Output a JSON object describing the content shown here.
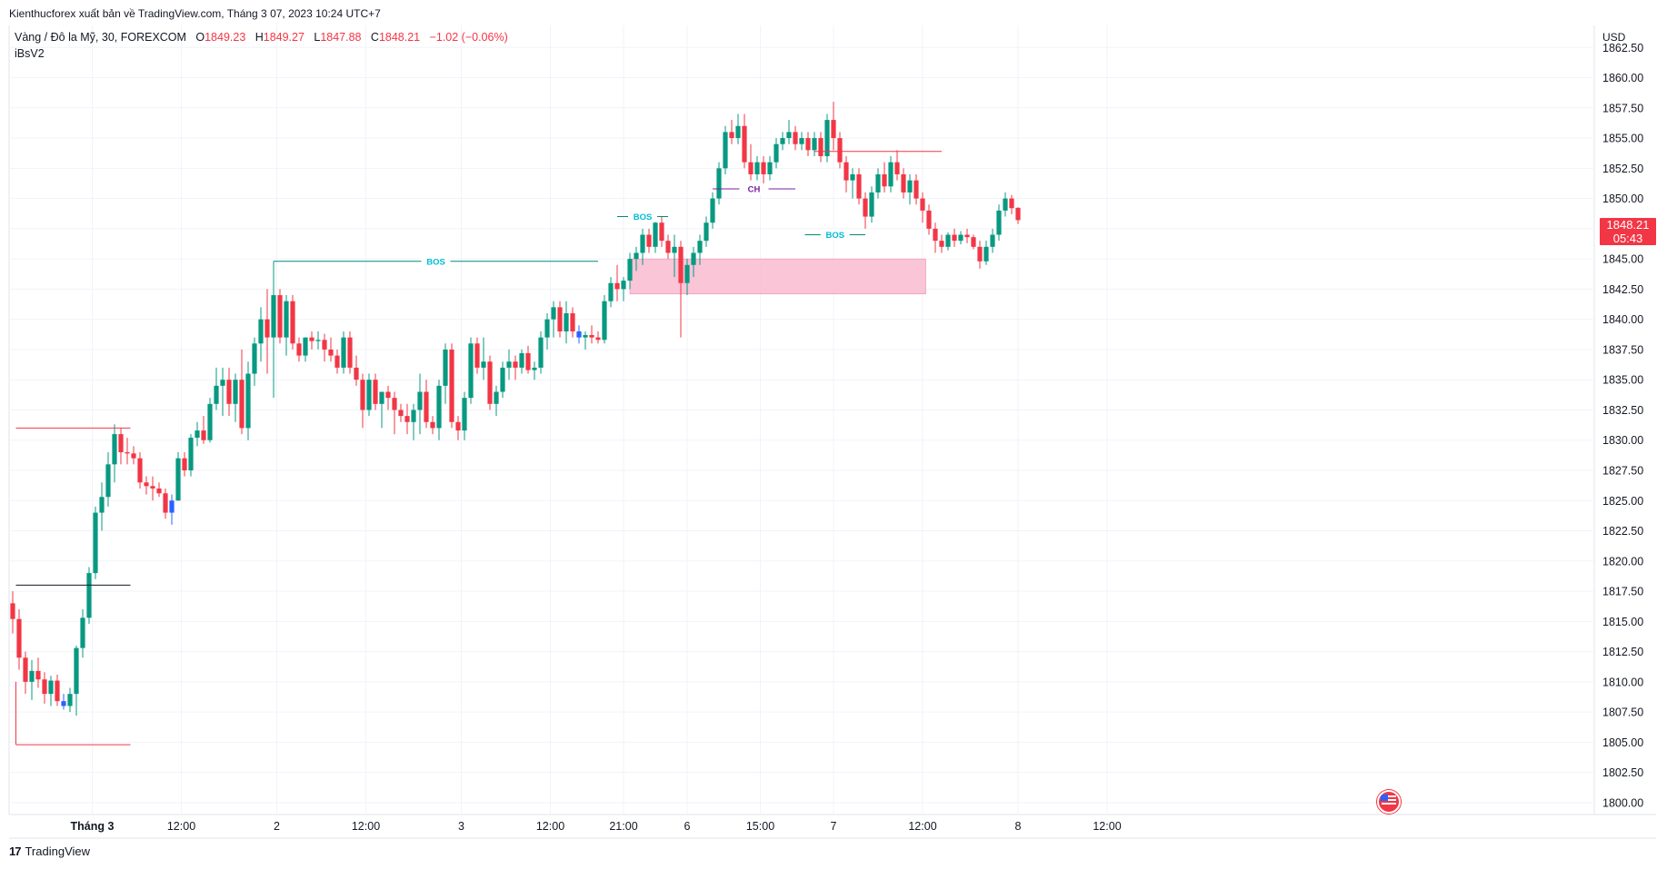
{
  "header": {
    "publisher_line": "Kienthucforex xuất bản về TradingView.com, Tháng 3 07, 2023 10:24 UTC+7"
  },
  "legend": {
    "symbol": "Vàng / Đô la Mỹ, 30, FOREXCOM",
    "open_label": "O",
    "open": "1849.23",
    "high_label": "H",
    "high": "1849.27",
    "low_label": "L",
    "low": "1847.88",
    "close_label": "C",
    "close": "1848.21",
    "change": "−1.02 (−0.06%)",
    "indicator": "iBsV2"
  },
  "price_axis": {
    "currency": "USD",
    "current_price": "1848.21",
    "countdown": "05:43"
  },
  "footer": {
    "brand": "TradingView",
    "brand_mark": "17"
  },
  "colors": {
    "up": "#089981",
    "down": "#f23645",
    "down_blue": "#2962ff",
    "bos": "#00bcd4",
    "choch": "#7b1fa2",
    "swing_high": "#f23645",
    "swing_low": "#f23645",
    "equilibrium": "#131722",
    "order_block": "#f8bbd0",
    "grid": "#f0f3fa"
  },
  "chart_data": {
    "type": "candlestick",
    "symbol": "XAUUSD",
    "timeframe": "30",
    "y_axis": {
      "ylim": [
        1799.8,
        1863.0
      ],
      "ticks": [
        "1800.00",
        "1802.50",
        "1805.00",
        "1807.50",
        "1810.00",
        "1812.50",
        "1815.00",
        "1817.50",
        "1820.00",
        "1822.50",
        "1825.00",
        "1827.50",
        "1830.00",
        "1832.50",
        "1835.00",
        "1837.50",
        "1840.00",
        "1842.50",
        "1845.00",
        "1847.50",
        "1850.00",
        "1852.50",
        "1855.00",
        "1857.50",
        "1860.00",
        "1862.50"
      ]
    },
    "x_axis": {
      "ticks": [
        {
          "label": "Tháng 3",
          "bold": true,
          "bar": 12.5
        },
        {
          "label": "12:00",
          "bold": false,
          "bar": 26.5
        },
        {
          "label": "2",
          "bold": false,
          "bar": 41.5
        },
        {
          "label": "12:00",
          "bold": false,
          "bar": 55.5
        },
        {
          "label": "3",
          "bold": false,
          "bar": 70.5
        },
        {
          "label": "12:00",
          "bold": false,
          "bar": 84.5
        },
        {
          "label": "21:00",
          "bold": false,
          "bar": 96
        },
        {
          "label": "6",
          "bold": false,
          "bar": 106
        },
        {
          "label": "15:00",
          "bold": false,
          "bar": 117.5
        },
        {
          "label": "7",
          "bold": false,
          "bar": 129
        },
        {
          "label": "12:00",
          "bold": false,
          "bar": 143
        },
        {
          "label": "8",
          "bold": false,
          "bar": 158
        },
        {
          "label": "12:00",
          "bold": false,
          "bar": 172
        }
      ]
    },
    "candles": [
      [
        1816.5,
        1817.5,
        1814.0,
        1815.2
      ],
      [
        1815.2,
        1816.0,
        1811.0,
        1812.0
      ],
      [
        1812.0,
        1812.5,
        1809.0,
        1810.0
      ],
      [
        1810.0,
        1811.8,
        1808.5,
        1810.9
      ],
      [
        1810.9,
        1812.0,
        1809.5,
        1810.2
      ],
      [
        1810.2,
        1810.8,
        1808.2,
        1809.0
      ],
      [
        1809.0,
        1810.5,
        1808.0,
        1810.1
      ],
      [
        1810.1,
        1810.6,
        1808.0,
        1808.4
      ],
      [
        1808.4,
        1809.0,
        1807.7,
        1808.0
      ],
      [
        1808.0,
        1809.5,
        1807.5,
        1809.0
      ],
      [
        1809.0,
        1813.0,
        1807.2,
        1812.8
      ],
      [
        1812.8,
        1816.0,
        1812.0,
        1815.3
      ],
      [
        1815.3,
        1819.5,
        1814.8,
        1819.0
      ],
      [
        1819.0,
        1824.5,
        1818.5,
        1824.0
      ],
      [
        1824.0,
        1826.5,
        1822.5,
        1825.3
      ],
      [
        1825.3,
        1829.0,
        1824.5,
        1828.0
      ],
      [
        1828.0,
        1831.3,
        1826.5,
        1830.5
      ],
      [
        1830.5,
        1831.0,
        1828.0,
        1829.0
      ],
      [
        1829.0,
        1830.2,
        1828.0,
        1828.9
      ],
      [
        1828.9,
        1829.5,
        1828.0,
        1828.5
      ],
      [
        1828.5,
        1829.0,
        1826.0,
        1826.5
      ],
      [
        1826.5,
        1827.0,
        1825.5,
        1826.2
      ],
      [
        1826.2,
        1827.0,
        1825.0,
        1826.0
      ],
      [
        1826.0,
        1826.5,
        1825.3,
        1825.6
      ],
      [
        1825.6,
        1826.0,
        1823.5,
        1824.0
      ],
      [
        1824.0,
        1825.5,
        1823.0,
        1825.0
      ],
      [
        1825.0,
        1829.0,
        1825.0,
        1828.5
      ],
      [
        1828.5,
        1829.0,
        1827.0,
        1827.5
      ],
      [
        1827.5,
        1830.5,
        1827.0,
        1830.2
      ],
      [
        1830.2,
        1831.5,
        1829.5,
        1830.8
      ],
      [
        1830.8,
        1832.0,
        1829.7,
        1830.0
      ],
      [
        1830.0,
        1833.5,
        1829.8,
        1833.0
      ],
      [
        1833.0,
        1836.0,
        1832.5,
        1834.5
      ],
      [
        1834.5,
        1836.0,
        1832.0,
        1835.0
      ],
      [
        1835.0,
        1836.0,
        1832.0,
        1833.0
      ],
      [
        1833.0,
        1835.5,
        1831.5,
        1835.0
      ],
      [
        1835.0,
        1837.5,
        1830.5,
        1831.0
      ],
      [
        1831.0,
        1836.5,
        1830.0,
        1835.5
      ],
      [
        1835.5,
        1838.5,
        1834.5,
        1838.0
      ],
      [
        1838.0,
        1841.0,
        1836.5,
        1840.0
      ],
      [
        1840.0,
        1842.5,
        1835.5,
        1838.5
      ],
      [
        1838.5,
        1844.8,
        1833.5,
        1842.0
      ],
      [
        1842.0,
        1842.5,
        1838.0,
        1838.5
      ],
      [
        1838.5,
        1842.0,
        1837.0,
        1841.5
      ],
      [
        1841.5,
        1842.0,
        1837.5,
        1838.0
      ],
      [
        1838.0,
        1838.5,
        1836.5,
        1837.0
      ],
      [
        1837.0,
        1838.5,
        1836.5,
        1838.5
      ],
      [
        1838.5,
        1839.0,
        1837.5,
        1838.2
      ],
      [
        1838.2,
        1839.0,
        1837.5,
        1838.3
      ],
      [
        1838.3,
        1838.8,
        1836.5,
        1837.5
      ],
      [
        1837.5,
        1838.5,
        1836.5,
        1837.0
      ],
      [
        1837.0,
        1837.5,
        1835.5,
        1836.0
      ],
      [
        1836.0,
        1839.0,
        1835.5,
        1838.5
      ],
      [
        1838.5,
        1839.0,
        1835.5,
        1836.0
      ],
      [
        1836.0,
        1837.0,
        1834.5,
        1835.0
      ],
      [
        1835.0,
        1835.5,
        1831.0,
        1832.5
      ],
      [
        1832.5,
        1835.5,
        1832.0,
        1835.0
      ],
      [
        1835.0,
        1835.5,
        1832.5,
        1833.0
      ],
      [
        1833.0,
        1834.0,
        1831.0,
        1834.0
      ],
      [
        1834.0,
        1834.5,
        1832.5,
        1833.5
      ],
      [
        1833.5,
        1834.0,
        1830.5,
        1832.5
      ],
      [
        1832.5,
        1833.0,
        1831.5,
        1832.0
      ],
      [
        1832.0,
        1833.0,
        1830.5,
        1831.5
      ],
      [
        1831.5,
        1833.0,
        1830.0,
        1832.5
      ],
      [
        1832.5,
        1835.5,
        1830.5,
        1834.0
      ],
      [
        1834.0,
        1835.0,
        1831.0,
        1831.5
      ],
      [
        1831.5,
        1832.0,
        1830.5,
        1831.0
      ],
      [
        1831.0,
        1835.0,
        1830.0,
        1834.5
      ],
      [
        1834.5,
        1838.0,
        1833.0,
        1837.5
      ],
      [
        1837.5,
        1838.0,
        1831.0,
        1831.5
      ],
      [
        1831.5,
        1832.0,
        1830.0,
        1830.8
      ],
      [
        1830.8,
        1834.0,
        1830.0,
        1833.5
      ],
      [
        1833.5,
        1838.5,
        1833.0,
        1838.0
      ],
      [
        1838.0,
        1838.5,
        1835.5,
        1836.0
      ],
      [
        1836.0,
        1838.5,
        1835.0,
        1836.5
      ],
      [
        1836.5,
        1837.0,
        1832.5,
        1833.0
      ],
      [
        1833.0,
        1834.5,
        1832.0,
        1834.0
      ],
      [
        1834.0,
        1836.5,
        1833.5,
        1836.0
      ],
      [
        1836.0,
        1837.5,
        1835.0,
        1836.5
      ],
      [
        1836.5,
        1837.0,
        1835.0,
        1836.0
      ],
      [
        1836.0,
        1837.5,
        1835.5,
        1837.2
      ],
      [
        1837.2,
        1837.8,
        1835.5,
        1835.8
      ],
      [
        1835.8,
        1836.5,
        1835.0,
        1836.0
      ],
      [
        1836.0,
        1839.0,
        1835.5,
        1838.5
      ],
      [
        1838.5,
        1840.5,
        1837.5,
        1840.0
      ],
      [
        1840.0,
        1841.5,
        1838.5,
        1841.0
      ],
      [
        1841.0,
        1841.5,
        1838.5,
        1839.0
      ],
      [
        1839.0,
        1841.5,
        1838.0,
        1840.5
      ],
      [
        1840.5,
        1841.0,
        1838.5,
        1839.0
      ],
      [
        1839.0,
        1839.5,
        1838.0,
        1838.5
      ],
      [
        1838.5,
        1839.0,
        1837.5,
        1838.7
      ],
      [
        1838.7,
        1839.5,
        1838.0,
        1838.5
      ],
      [
        1838.5,
        1839.0,
        1838.0,
        1838.3
      ],
      [
        1838.3,
        1842.0,
        1838.0,
        1841.5
      ],
      [
        1841.5,
        1843.5,
        1841.0,
        1843.0
      ],
      [
        1843.0,
        1844.5,
        1841.5,
        1842.5
      ],
      [
        1842.5,
        1843.5,
        1841.5,
        1843.2
      ],
      [
        1843.2,
        1845.5,
        1842.5,
        1845.0
      ],
      [
        1845.0,
        1846.0,
        1844.0,
        1845.5
      ],
      [
        1845.5,
        1847.5,
        1844.5,
        1847.0
      ],
      [
        1847.0,
        1847.5,
        1845.5,
        1846.0
      ],
      [
        1846.0,
        1848.5,
        1845.5,
        1848.0
      ],
      [
        1848.0,
        1848.5,
        1846.0,
        1846.5
      ],
      [
        1846.5,
        1847.0,
        1845.0,
        1845.5
      ],
      [
        1845.5,
        1847.0,
        1843.5,
        1846.0
      ],
      [
        1846.0,
        1846.5,
        1838.5,
        1843.0
      ],
      [
        1843.0,
        1845.0,
        1842.0,
        1844.5
      ],
      [
        1844.5,
        1846.0,
        1843.5,
        1845.5
      ],
      [
        1845.5,
        1847.0,
        1844.5,
        1846.5
      ],
      [
        1846.5,
        1848.5,
        1846.0,
        1848.0
      ],
      [
        1848.0,
        1850.5,
        1847.5,
        1850.0
      ],
      [
        1850.0,
        1853.0,
        1849.5,
        1852.5
      ],
      [
        1852.5,
        1856.0,
        1852.0,
        1855.5
      ],
      [
        1855.5,
        1856.5,
        1854.5,
        1855.0
      ],
      [
        1855.0,
        1857.0,
        1854.5,
        1856.0
      ],
      [
        1856.0,
        1857.0,
        1852.5,
        1853.0
      ],
      [
        1853.0,
        1854.5,
        1851.5,
        1852.0
      ],
      [
        1852.0,
        1853.5,
        1851.5,
        1853.0
      ],
      [
        1853.0,
        1853.5,
        1851.0,
        1852.0
      ],
      [
        1852.0,
        1853.5,
        1851.5,
        1853.0
      ],
      [
        1853.0,
        1855.0,
        1852.5,
        1854.5
      ],
      [
        1854.5,
        1855.5,
        1854.0,
        1855.0
      ],
      [
        1855.0,
        1856.5,
        1854.5,
        1855.5
      ],
      [
        1855.5,
        1856.0,
        1854.0,
        1854.5
      ],
      [
        1854.5,
        1855.5,
        1854.0,
        1855.0
      ],
      [
        1855.0,
        1855.5,
        1853.5,
        1854.0
      ],
      [
        1854.0,
        1855.5,
        1853.5,
        1855.0
      ],
      [
        1855.0,
        1855.5,
        1853.0,
        1853.5
      ],
      [
        1853.5,
        1857.0,
        1853.0,
        1856.5
      ],
      [
        1856.5,
        1858.0,
        1854.0,
        1855.0
      ],
      [
        1855.0,
        1855.5,
        1852.5,
        1853.0
      ],
      [
        1853.0,
        1853.5,
        1850.5,
        1851.5
      ],
      [
        1851.5,
        1852.5,
        1850.0,
        1852.0
      ],
      [
        1852.0,
        1852.5,
        1849.5,
        1850.0
      ],
      [
        1850.0,
        1850.5,
        1847.5,
        1848.5
      ],
      [
        1848.5,
        1851.0,
        1848.0,
        1850.5
      ],
      [
        1850.5,
        1852.5,
        1850.0,
        1852.0
      ],
      [
        1852.0,
        1853.0,
        1850.5,
        1851.0
      ],
      [
        1851.0,
        1853.5,
        1850.5,
        1853.0
      ],
      [
        1853.0,
        1854.0,
        1851.5,
        1852.0
      ],
      [
        1852.0,
        1852.5,
        1850.0,
        1850.5
      ],
      [
        1850.5,
        1852.0,
        1849.5,
        1851.5
      ],
      [
        1851.5,
        1852.0,
        1849.5,
        1850.0
      ],
      [
        1850.0,
        1850.5,
        1848.0,
        1849.0
      ],
      [
        1849.0,
        1849.5,
        1847.0,
        1847.5
      ],
      [
        1847.5,
        1848.0,
        1845.5,
        1846.5
      ],
      [
        1846.5,
        1847.0,
        1845.5,
        1846.0
      ],
      [
        1846.0,
        1847.2,
        1845.7,
        1847.0
      ],
      [
        1847.0,
        1847.5,
        1846.0,
        1846.5
      ],
      [
        1846.5,
        1847.3,
        1846.2,
        1847.0
      ],
      [
        1847.0,
        1847.5,
        1846.3,
        1846.8
      ],
      [
        1846.8,
        1847.0,
        1845.8,
        1846.0
      ],
      [
        1846.0,
        1846.5,
        1844.2,
        1844.8
      ],
      [
        1844.8,
        1846.5,
        1844.5,
        1846.0
      ],
      [
        1846.0,
        1847.5,
        1845.5,
        1847.0
      ],
      [
        1847.0,
        1849.5,
        1846.5,
        1849.0
      ],
      [
        1849.0,
        1850.5,
        1848.5,
        1850.0
      ],
      [
        1850.0,
        1850.3,
        1848.7,
        1849.2
      ],
      [
        1849.23,
        1849.27,
        1847.88,
        1848.21
      ]
    ],
    "blue_down_bars": [
      8,
      25,
      89
    ],
    "annotations": [
      {
        "type": "swing_high_line",
        "price": 1831.0,
        "from_bar": 0.5,
        "to_bar": 18.5,
        "label": ""
      },
      {
        "type": "equilibrium_line",
        "price": 1818.0,
        "from_bar": 0.5,
        "to_bar": 18.5,
        "label": ""
      },
      {
        "type": "swing_low_line",
        "price": 1804.8,
        "from_bar": 0.5,
        "to_bar": 18.5,
        "label": ""
      },
      {
        "type": "bos",
        "price": 1844.8,
        "from_bar": 41,
        "to_bar": 92,
        "label": "BOS"
      },
      {
        "type": "bos",
        "price": 1848.5,
        "from_bar": 95,
        "to_bar": 103,
        "label": "BOS"
      },
      {
        "type": "choch",
        "price": 1850.8,
        "from_bar": 110,
        "to_bar": 123,
        "label": "CH"
      },
      {
        "type": "bos",
        "price": 1847.0,
        "from_bar": 124.5,
        "to_bar": 134,
        "label": "BOS"
      },
      {
        "type": "swing_high_line",
        "price": 1853.9,
        "from_bar": 126,
        "to_bar": 146,
        "label": ""
      },
      {
        "type": "order_block",
        "price_top": 1845.0,
        "price_bottom": 1842.1,
        "from_bar": 97,
        "to_bar": 143.5,
        "label": ""
      }
    ]
  }
}
